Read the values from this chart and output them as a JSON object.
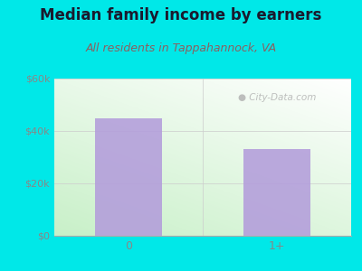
{
  "title": "Median family income by earners",
  "subtitle": "All residents in Tappahannock, VA",
  "categories": [
    "0",
    "1+"
  ],
  "values": [
    45000,
    33000
  ],
  "bar_color": "#b39ddb",
  "bg_outer": "#00e8e8",
  "title_color": "#1a1a2e",
  "subtitle_color": "#8b6060",
  "tick_color": "#888888",
  "ylim": [
    0,
    60000
  ],
  "yticks": [
    0,
    20000,
    40000,
    60000
  ],
  "ytick_labels": [
    "$0",
    "$20k",
    "$40k",
    "$60k"
  ],
  "title_fontsize": 12,
  "subtitle_fontsize": 9,
  "watermark": "City-Data.com",
  "watermark_color": "#aaaaaa"
}
